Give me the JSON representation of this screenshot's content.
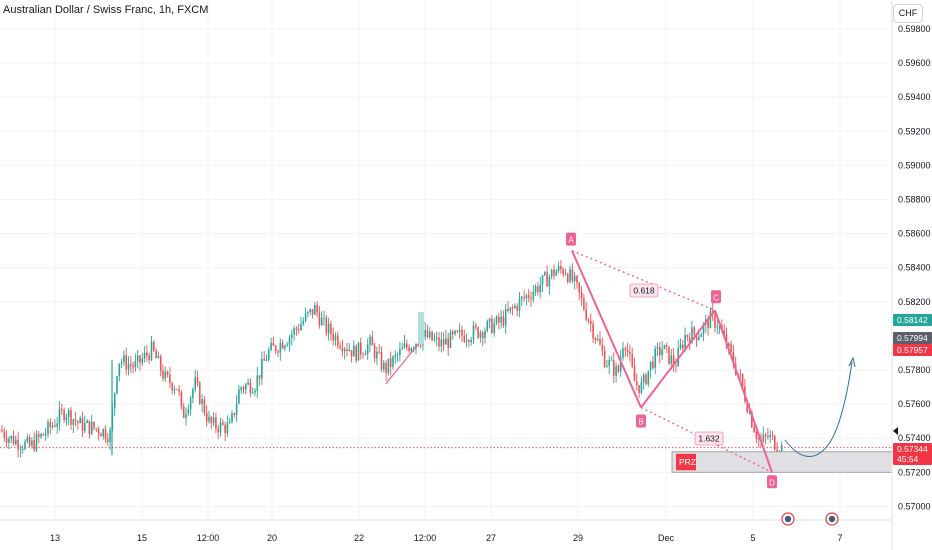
{
  "header": {
    "title": "Australian Dollar / Swiss Franc, 1h, FXCM",
    "currency": "CHF"
  },
  "chart_data": {
    "type": "candlestick",
    "title": "Australian Dollar / Swiss Franc, 1h, FXCM",
    "y_axis_side": "right",
    "ylim": [
      0.5692,
      0.5997
    ],
    "y_ticks": [
      "0.59800",
      "0.59600",
      "0.59400",
      "0.59200",
      "0.59000",
      "0.58800",
      "0.58600",
      "0.58400",
      "0.58200",
      "0.57800",
      "0.57600",
      "0.57400",
      "0.57200",
      "0.57000"
    ],
    "x_ticks": [
      "13",
      "15",
      "12:00",
      "20",
      "22",
      "12:00",
      "27",
      "29",
      "Dec",
      "5",
      "7"
    ],
    "grid": true,
    "price_labels": [
      {
        "value": 0.58142,
        "text": "0.58142",
        "color": "#26a69a"
      },
      {
        "value": 0.57994,
        "text": "0.57994",
        "color": "#5d606b"
      },
      {
        "value": 0.57957,
        "text": "0.57957",
        "color": "#f23645"
      },
      {
        "value": 0.57344,
        "text": "0.57344",
        "color": "#f23645"
      }
    ],
    "countdown": "45:54",
    "last_price": 0.57344,
    "harmonic_pattern": {
      "points": [
        {
          "label": "A",
          "value": 0.585
        },
        {
          "label": "B",
          "value": 0.5758
        },
        {
          "label": "C",
          "value": 0.5815
        },
        {
          "label": "D",
          "value": 0.572
        }
      ],
      "ratios": [
        "0.618",
        "1.632"
      ],
      "prz_label": "PRZ",
      "prz_range": [
        0.572,
        0.5732
      ],
      "color": "#f06292"
    },
    "projection_color": "#2a6f9e"
  }
}
